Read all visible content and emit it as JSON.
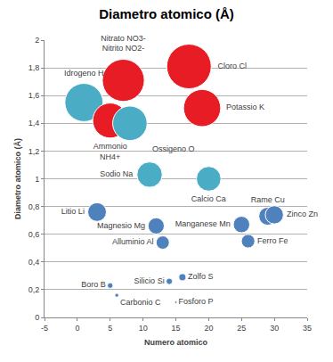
{
  "chart_data": {
    "type": "bubble",
    "title": "Diametro atomico (Å)",
    "x_label": "Numero atomico",
    "y_label": "Diametro atomico (Å)",
    "labels": [
      "Idrogeno H",
      "Ammonio\nNH4+",
      "Nitrato NO3-\nNitrito NO2-",
      "Ossigeno O",
      "Cloro Cl",
      "Potassio K",
      "Sodio Na",
      "Calcio Ca",
      "Litio Li",
      "Magnesio Mg",
      "Alluminio Al",
      "Manganese Mn",
      "Rame Cu",
      "Zinco Zn",
      "Ferro Fe",
      "Boro B",
      "Carbonio C",
      "Silicio Si",
      "Zolfo S",
      "Fosforo P"
    ],
    "x": [
      1,
      5,
      7,
      8,
      17,
      19,
      11,
      20,
      3,
      12,
      13,
      25,
      29,
      30,
      26,
      5,
      6,
      14,
      16,
      15
    ],
    "values": [
      1.55,
      1.42,
      1.71,
      1.4,
      1.81,
      1.51,
      1.03,
      1.0,
      0.76,
      0.66,
      0.54,
      0.67,
      0.73,
      0.74,
      0.55,
      0.23,
      0.16,
      0.26,
      0.29,
      0.11
    ],
    "sizes": [
      1.55,
      1.42,
      1.71,
      1.4,
      1.81,
      1.51,
      1.03,
      1.0,
      0.76,
      0.66,
      0.54,
      0.67,
      0.73,
      0.74,
      0.55,
      0.23,
      0.16,
      0.26,
      0.29,
      0.11
    ],
    "colors": [
      "#4bacc6",
      "#e81c24",
      "#e81c24",
      "#4bacc6",
      "#e81c24",
      "#e81c24",
      "#4bacc6",
      "#4bacc6",
      "#4f81bd",
      "#4f81bd",
      "#4f81bd",
      "#4f81bd",
      "#4f81bd",
      "#4f81bd",
      "#4f81bd",
      "#4f81bd",
      "#4f81bd",
      "#4f81bd",
      "#4f81bd",
      "#4bacc6"
    ],
    "xlim": [
      -5,
      35
    ],
    "xticks": [
      -5,
      0,
      5,
      10,
      15,
      20,
      25,
      30,
      35
    ],
    "ylim": [
      0,
      2
    ],
    "yticks": [
      0,
      {
        "value": 0.2,
        "label": "0,2"
      },
      {
        "value": 0.4,
        "label": "0,4"
      },
      {
        "value": 0.6,
        "label": "0,6"
      },
      {
        "value": 0.8,
        "label": "0,8"
      },
      1,
      {
        "value": 1.2,
        "label": "1,2"
      },
      {
        "value": 1.4,
        "label": "1,4"
      },
      {
        "value": 1.6,
        "label": "1,6"
      },
      {
        "value": 1.8,
        "label": "1,8"
      },
      2
    ],
    "grid": true
  }
}
